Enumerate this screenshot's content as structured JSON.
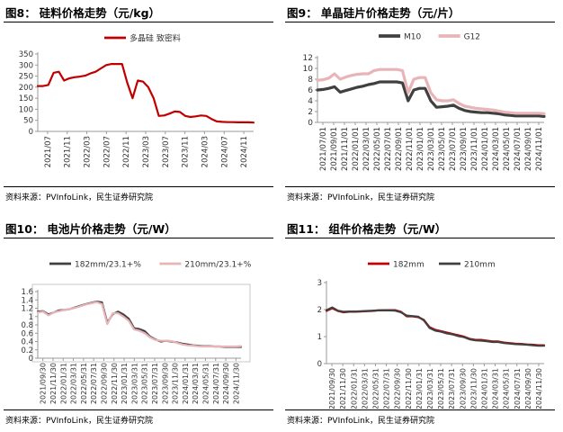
{
  "colors": {
    "red": "#c00000",
    "dark": "#404040",
    "pink": "#e8b4b8",
    "silver": "#c8c8c8"
  },
  "panels": [
    {
      "id": "p8",
      "fig_label": "图8：",
      "title": "硅料价格走势（元/kg）",
      "source": "资料来源：PVInfoLink，民生证券研究院"
    },
    {
      "id": "p9",
      "fig_label": "图9：",
      "title": "单晶硅片价格走势（元/片）",
      "source": "资料来源：PVInfoLink，民生证券研究院"
    },
    {
      "id": "p10",
      "fig_label": "图10：",
      "title": "电池片价格走势（元/W）",
      "source": "资料来源：PVInfoLink，民生证券研究院"
    },
    {
      "id": "p11",
      "fig_label": "图11：",
      "title": "组件价格走势（元/W）",
      "source": "资料来源：PVInfoLink，民生证券研究院"
    }
  ],
  "chart_data": [
    {
      "type": "line",
      "ylim": [
        0,
        350
      ],
      "yticks": [
        "0",
        "50",
        "100",
        "150",
        "200",
        "250",
        "300",
        "350"
      ],
      "xticks": [
        "2021/07",
        "2021/11",
        "2022/03",
        "2022/07",
        "2022/11",
        "2023/03",
        "2023/07",
        "2023/11",
        "2024/03",
        "2024/07",
        "2024/11"
      ],
      "xrange": [
        0,
        41
      ],
      "series": [
        {
          "name": "多晶硅 致密料",
          "color": "#c00000",
          "x": [
            0,
            1,
            2,
            3,
            4,
            5,
            6,
            7,
            8,
            9,
            10,
            11,
            12,
            13,
            14,
            15,
            16,
            17,
            18,
            19,
            20,
            21,
            22,
            23,
            24,
            25,
            26,
            27,
            28,
            29,
            30,
            31,
            32,
            33,
            34,
            35,
            36,
            37,
            38,
            39,
            40,
            41
          ],
          "y": [
            205,
            205,
            210,
            265,
            270,
            230,
            240,
            245,
            248,
            252,
            262,
            270,
            285,
            300,
            305,
            305,
            305,
            220,
            150,
            230,
            225,
            200,
            150,
            70,
            72,
            80,
            90,
            88,
            70,
            65,
            68,
            72,
            70,
            56,
            45,
            43,
            42,
            42,
            41,
            41,
            41,
            40
          ]
        }
      ]
    },
    {
      "type": "line",
      "ylim": [
        0,
        12
      ],
      "yticks": [
        "0",
        "2",
        "4",
        "6",
        "8",
        "10",
        "12"
      ],
      "xticks": [
        "2021/07/01",
        "2021/09/01",
        "2021/11/01",
        "2022/01/01",
        "2022/03/01",
        "2022/05/01",
        "2022/07/01",
        "2022/09/01",
        "2022/11/01",
        "2023/01/01",
        "2023/03/01",
        "2023/05/01",
        "2023/07/01",
        "2023/09/01",
        "2023/11/01",
        "2024/01/01",
        "2024/03/01",
        "2024/05/01",
        "2024/07/01",
        "2024/09/01",
        "2024/11/01"
      ],
      "xrange": [
        0,
        40
      ],
      "series": [
        {
          "name": "M10",
          "color": "#404040",
          "x": [
            0,
            1,
            2,
            3,
            4,
            5,
            6,
            7,
            8,
            9,
            10,
            11,
            12,
            13,
            14,
            15,
            16,
            17,
            18,
            19,
            20,
            21,
            22,
            23,
            24,
            25,
            26,
            27,
            28,
            29,
            30,
            31,
            32,
            33,
            34,
            35,
            36,
            37,
            38,
            39,
            40
          ],
          "y": [
            6.0,
            6.1,
            6.3,
            6.6,
            5.6,
            5.9,
            6.2,
            6.5,
            6.7,
            7.0,
            7.2,
            7.5,
            7.5,
            7.5,
            7.5,
            7.3,
            4.0,
            6.0,
            6.3,
            6.3,
            4.0,
            2.8,
            2.9,
            3.0,
            3.2,
            2.6,
            2.2,
            2.0,
            1.9,
            1.8,
            1.8,
            1.7,
            1.6,
            1.4,
            1.3,
            1.2,
            1.2,
            1.2,
            1.2,
            1.2,
            1.1
          ]
        },
        {
          "name": "G12",
          "color": "#e8b4b8",
          "x": [
            0,
            1,
            2,
            3,
            4,
            5,
            6,
            7,
            8,
            9,
            10,
            11,
            12,
            13,
            14,
            15,
            16,
            17,
            18,
            19,
            20,
            21,
            22,
            23,
            24,
            25,
            26,
            27,
            28,
            29,
            30,
            31,
            32,
            33,
            34,
            35,
            36,
            37,
            38,
            39,
            40
          ],
          "y": [
            7.8,
            7.9,
            8.2,
            9.0,
            8.0,
            8.4,
            8.7,
            8.9,
            9.0,
            9.0,
            9.6,
            9.8,
            9.8,
            9.8,
            9.8,
            9.6,
            5.5,
            8.0,
            8.3,
            8.3,
            5.5,
            4.2,
            4.0,
            4.0,
            4.2,
            3.5,
            3.0,
            2.8,
            2.6,
            2.5,
            2.4,
            2.3,
            2.1,
            1.9,
            1.8,
            1.7,
            1.7,
            1.7,
            1.7,
            1.7,
            1.6
          ]
        }
      ]
    },
    {
      "type": "line",
      "ylim": [
        0,
        1.6
      ],
      "yticks": [
        "0",
        "0.2",
        "0.4",
        "0.6",
        "0.8",
        "1",
        "1.2",
        "1.4",
        "1.6"
      ],
      "xticks": [
        "2021/09/30",
        "2021/11/30",
        "2022/01/31",
        "2022/03/31",
        "2022/05/31",
        "2022/07/31",
        "2022/09/30",
        "2022/11/30",
        "2023/01/31",
        "2023/03/31",
        "2023/05/31",
        "2023/07/31",
        "2023/09/30",
        "2023/11/30",
        "2024/01/31",
        "2024/03/31",
        "2024/05/31",
        "2024/07/31",
        "2024/09/30",
        "2024/11/30"
      ],
      "xrange": [
        0,
        38
      ],
      "series": [
        {
          "name": "182mm/23.1+%",
          "color": "#404040",
          "x": [
            0,
            1,
            2,
            3,
            4,
            5,
            6,
            7,
            8,
            9,
            10,
            11,
            12,
            13,
            14,
            15,
            16,
            17,
            18,
            19,
            20,
            21,
            22,
            23,
            24,
            25,
            26,
            27,
            28,
            29,
            30,
            31,
            32,
            33,
            34,
            35,
            36,
            37,
            38
          ],
          "y": [
            1.12,
            1.13,
            1.05,
            1.1,
            1.15,
            1.16,
            1.18,
            1.22,
            1.26,
            1.3,
            1.33,
            1.36,
            1.34,
            0.85,
            1.06,
            1.12,
            1.05,
            0.95,
            0.72,
            0.7,
            0.65,
            0.52,
            0.45,
            0.4,
            0.42,
            0.4,
            0.38,
            0.35,
            0.33,
            0.31,
            0.3,
            0.29,
            0.29,
            0.28,
            0.28,
            0.27,
            0.27,
            0.27,
            0.27
          ]
        },
        {
          "name": "210mm/23.1+%",
          "color": "#e8b4b8",
          "x": [
            0,
            1,
            2,
            3,
            4,
            5,
            6,
            7,
            8,
            9,
            10,
            11,
            12,
            13,
            14,
            15,
            16,
            17,
            18,
            19,
            20,
            21,
            22,
            23,
            24,
            25,
            26,
            27,
            28,
            29,
            30,
            31,
            32,
            33,
            34,
            35,
            36,
            37,
            38
          ],
          "y": [
            1.1,
            1.12,
            1.03,
            1.1,
            1.13,
            1.16,
            1.18,
            1.21,
            1.25,
            1.29,
            1.32,
            1.35,
            1.3,
            0.82,
            1.08,
            1.08,
            1.0,
            0.9,
            0.69,
            0.66,
            0.6,
            0.5,
            0.44,
            0.42,
            0.42,
            0.41,
            0.37,
            0.33,
            0.31,
            0.3,
            0.29,
            0.28,
            0.28,
            0.28,
            0.28,
            0.28,
            0.28,
            0.28,
            0.29
          ]
        }
      ]
    },
    {
      "type": "line",
      "ylim": [
        0,
        3
      ],
      "yticks": [
        "0",
        "1",
        "2",
        "3"
      ],
      "xticks": [
        "2021/09/30",
        "2021/11/30",
        "2022/01/31",
        "2022/03/31",
        "2022/05/31",
        "2022/07/31",
        "2022/09/30",
        "2022/11/30",
        "2023/01/31",
        "2023/03/31",
        "2023/05/31",
        "2023/07/31",
        "2023/09/30",
        "2023/11/30",
        "2024/01/31",
        "2024/03/31",
        "2024/05/31",
        "2024/07/31",
        "2024/09/30",
        "2024/11/30"
      ],
      "xrange": [
        0,
        38
      ],
      "series": [
        {
          "name": "182mm",
          "color": "#c00000",
          "x": [
            0,
            1,
            2,
            3,
            4,
            5,
            6,
            7,
            8,
            9,
            10,
            11,
            12,
            13,
            14,
            15,
            16,
            17,
            18,
            19,
            20,
            21,
            22,
            23,
            24,
            25,
            26,
            27,
            28,
            29,
            30,
            31,
            32,
            33,
            34,
            35,
            36,
            37,
            38
          ],
          "y": [
            1.95,
            2.05,
            1.95,
            1.9,
            1.92,
            1.92,
            1.93,
            1.94,
            1.95,
            1.97,
            1.98,
            1.98,
            1.98,
            1.92,
            1.75,
            1.75,
            1.72,
            1.62,
            1.35,
            1.25,
            1.2,
            1.15,
            1.1,
            1.05,
            1.0,
            0.92,
            0.88,
            0.88,
            0.85,
            0.82,
            0.82,
            0.78,
            0.76,
            0.74,
            0.73,
            0.71,
            0.7,
            0.68,
            0.68
          ]
        },
        {
          "name": "210mm",
          "color": "#404040",
          "x": [
            0,
            1,
            2,
            3,
            4,
            5,
            6,
            7,
            8,
            9,
            10,
            11,
            12,
            13,
            14,
            15,
            16,
            17,
            18,
            19,
            20,
            21,
            22,
            23,
            24,
            25,
            26,
            27,
            28,
            29,
            30,
            31,
            32,
            33,
            34,
            35,
            36,
            37,
            38
          ],
          "y": [
            1.98,
            2.08,
            1.96,
            1.92,
            1.93,
            1.93,
            1.94,
            1.95,
            1.96,
            1.97,
            1.97,
            1.97,
            1.96,
            1.9,
            1.78,
            1.76,
            1.74,
            1.6,
            1.32,
            1.22,
            1.18,
            1.12,
            1.08,
            1.02,
            0.98,
            0.9,
            0.86,
            0.85,
            0.83,
            0.8,
            0.8,
            0.76,
            0.74,
            0.72,
            0.71,
            0.7,
            0.68,
            0.66,
            0.66
          ]
        }
      ]
    }
  ]
}
